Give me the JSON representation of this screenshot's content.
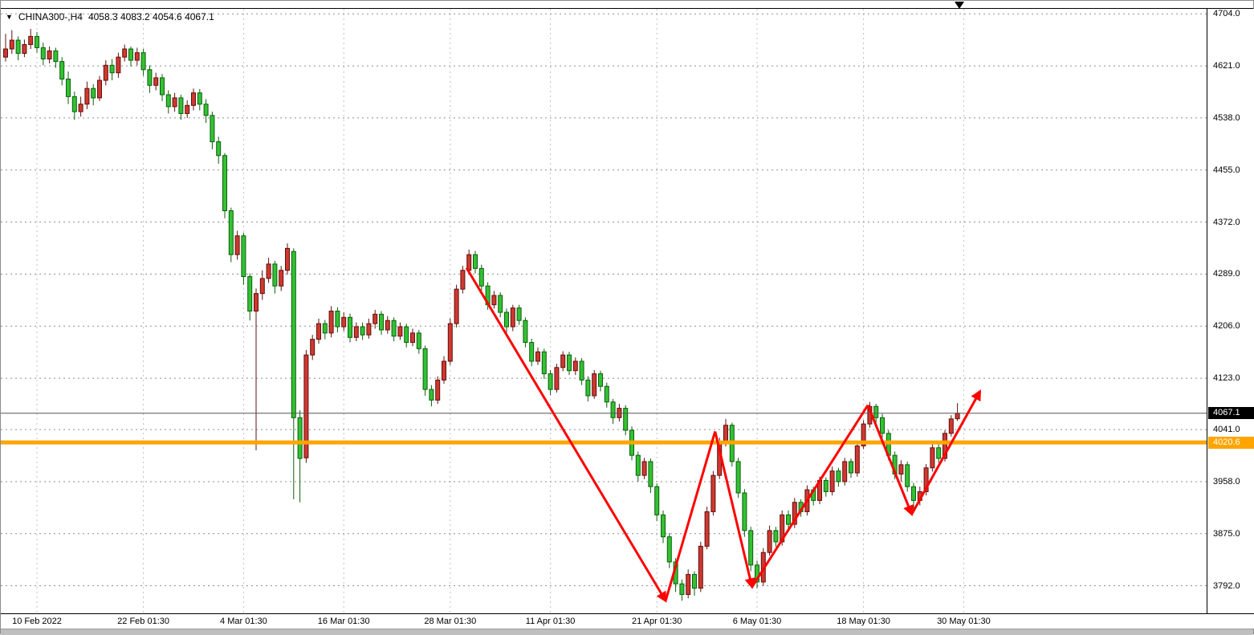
{
  "window": {
    "title_symbol": "CHINA300-,H4",
    "title_ohlc": "4058.3 4083.2 4054.6 4067.1"
  },
  "chart_data": {
    "type": "candlestick",
    "symbol": "CHINA300-",
    "timeframe": "H4",
    "last_ohlc": {
      "open": 4058.3,
      "high": 4083.2,
      "low": 4054.6,
      "close": 4067.1
    },
    "scale": {
      "price_max": 4712,
      "price_min": 3748
    },
    "grid": true,
    "y_axis": {
      "ticks": [
        4704,
        4621,
        4538,
        4455,
        4372,
        4289,
        4206,
        4123,
        4041,
        3958,
        3875,
        3792
      ]
    },
    "x_axis": {
      "labels": [
        {
          "label": "10 Feb 2022",
          "index": 5
        },
        {
          "label": "22 Feb 01:30",
          "index": 22
        },
        {
          "label": "4 Mar 01:30",
          "index": 38
        },
        {
          "label": "16 Mar 01:30",
          "index": 54
        },
        {
          "label": "28 Mar 01:30",
          "index": 71
        },
        {
          "label": "11 Apr 01:30",
          "index": 87
        },
        {
          "label": "21 Apr 01:30",
          "index": 104
        },
        {
          "label": "6 May 01:30",
          "index": 120
        },
        {
          "label": "18 May 01:30",
          "index": 137
        },
        {
          "label": "30 May 01:30",
          "index": 153
        }
      ]
    },
    "price_axis": {
      "current_price_value": 4067.1,
      "current_price_label": "4067.1",
      "hline_value": 4020.6,
      "hline_label": "4020.6"
    },
    "colors": {
      "up_fill": "#cf3830",
      "up_stroke": "#5e100c",
      "down_fill": "#33c133",
      "down_stroke": "#0b5f0b",
      "grid": "#8d8d8d",
      "hline": "#ffa500",
      "current_price_line": "#555555",
      "arrow": "#ff0000",
      "axis_text": "#000000"
    },
    "candles": [
      [
        4635,
        4672,
        4628,
        4648
      ],
      [
        4648,
        4678,
        4640,
        4662
      ],
      [
        4662,
        4668,
        4630,
        4641
      ],
      [
        4641,
        4663,
        4635,
        4655
      ],
      [
        4655,
        4680,
        4648,
        4668
      ],
      [
        4668,
        4675,
        4642,
        4650
      ],
      [
        4650,
        4658,
        4622,
        4632
      ],
      [
        4632,
        4652,
        4625,
        4645
      ],
      [
        4645,
        4650,
        4618,
        4628
      ],
      [
        4628,
        4635,
        4590,
        4600
      ],
      [
        4600,
        4612,
        4560,
        4572
      ],
      [
        4572,
        4580,
        4535,
        4548
      ],
      [
        4548,
        4572,
        4540,
        4560
      ],
      [
        4560,
        4596,
        4552,
        4585
      ],
      [
        4585,
        4592,
        4558,
        4570
      ],
      [
        4570,
        4605,
        4565,
        4598
      ],
      [
        4598,
        4630,
        4590,
        4622
      ],
      [
        4622,
        4632,
        4598,
        4610
      ],
      [
        4610,
        4642,
        4602,
        4635
      ],
      [
        4635,
        4655,
        4628,
        4648
      ],
      [
        4648,
        4652,
        4620,
        4630
      ],
      [
        4630,
        4650,
        4622,
        4642
      ],
      [
        4642,
        4648,
        4605,
        4615
      ],
      [
        4615,
        4622,
        4578,
        4590
      ],
      [
        4590,
        4610,
        4582,
        4602
      ],
      [
        4602,
        4608,
        4565,
        4575
      ],
      [
        4575,
        4582,
        4545,
        4556
      ],
      [
        4556,
        4578,
        4548,
        4570
      ],
      [
        4570,
        4575,
        4535,
        4545
      ],
      [
        4545,
        4566,
        4538,
        4558
      ],
      [
        4558,
        4585,
        4550,
        4578
      ],
      [
        4578,
        4584,
        4550,
        4560
      ],
      [
        4560,
        4568,
        4530,
        4542
      ],
      [
        4542,
        4548,
        4488,
        4500
      ],
      [
        4500,
        4508,
        4465,
        4478
      ],
      [
        4478,
        4482,
        4378,
        4390
      ],
      [
        4390,
        4395,
        4308,
        4320
      ],
      [
        4320,
        4358,
        4312,
        4350
      ],
      [
        4350,
        4355,
        4272,
        4285
      ],
      [
        4285,
        4290,
        4215,
        4230
      ],
      [
        4230,
        4266,
        4008,
        4258
      ],
      [
        4258,
        4295,
        4248,
        4282
      ],
      [
        4282,
        4315,
        4275,
        4305
      ],
      [
        4305,
        4310,
        4258,
        4270
      ],
      [
        4270,
        4302,
        4262,
        4295
      ],
      [
        4295,
        4338,
        4288,
        4330
      ],
      [
        4325,
        4330,
        3930,
        4060
      ],
      [
        4060,
        4072,
        3925,
        3995
      ],
      [
        3996,
        4168,
        3988,
        4160
      ],
      [
        4160,
        4192,
        4152,
        4185
      ],
      [
        4185,
        4218,
        4178,
        4210
      ],
      [
        4210,
        4216,
        4185,
        4195
      ],
      [
        4195,
        4238,
        4188,
        4230
      ],
      [
        4230,
        4236,
        4196,
        4205
      ],
      [
        4205,
        4228,
        4198,
        4220
      ],
      [
        4220,
        4226,
        4180,
        4188
      ],
      [
        4188,
        4212,
        4182,
        4205
      ],
      [
        4205,
        4212,
        4184,
        4192
      ],
      [
        4192,
        4218,
        4186,
        4210
      ],
      [
        4210,
        4232,
        4202,
        4225
      ],
      [
        4225,
        4230,
        4192,
        4200
      ],
      [
        4200,
        4222,
        4194,
        4215
      ],
      [
        4215,
        4220,
        4182,
        4190
      ],
      [
        4190,
        4212,
        4184,
        4205
      ],
      [
        4205,
        4210,
        4172,
        4180
      ],
      [
        4180,
        4202,
        4174,
        4195
      ],
      [
        4195,
        4200,
        4162,
        4170
      ],
      [
        4170,
        4175,
        4095,
        4105
      ],
      [
        4105,
        4112,
        4078,
        4088
      ],
      [
        4088,
        4126,
        4082,
        4120
      ],
      [
        4120,
        4158,
        4114,
        4150
      ],
      [
        4150,
        4218,
        4144,
        4210
      ],
      [
        4210,
        4272,
        4204,
        4265
      ],
      [
        4265,
        4302,
        4258,
        4295
      ],
      [
        4295,
        4328,
        4288,
        4320
      ],
      [
        4320,
        4326,
        4290,
        4298
      ],
      [
        4298,
        4304,
        4262,
        4270
      ],
      [
        4270,
        4276,
        4232,
        4240
      ],
      [
        4240,
        4262,
        4234,
        4255
      ],
      [
        4255,
        4260,
        4220,
        4228
      ],
      [
        4228,
        4234,
        4196,
        4205
      ],
      [
        4205,
        4240,
        4198,
        4235
      ],
      [
        4235,
        4240,
        4208,
        4215
      ],
      [
        4215,
        4220,
        4172,
        4180
      ],
      [
        4180,
        4186,
        4142,
        4150
      ],
      [
        4150,
        4172,
        4144,
        4165
      ],
      [
        4165,
        4170,
        4122,
        4130
      ],
      [
        4130,
        4136,
        4096,
        4105
      ],
      [
        4105,
        4146,
        4100,
        4140
      ],
      [
        4140,
        4166,
        4134,
        4160
      ],
      [
        4160,
        4165,
        4128,
        4135
      ],
      [
        4135,
        4156,
        4128,
        4150
      ],
      [
        4150,
        4155,
        4112,
        4120
      ],
      [
        4120,
        4126,
        4086,
        4095
      ],
      [
        4095,
        4136,
        4090,
        4130
      ],
      [
        4130,
        4135,
        4102,
        4110
      ],
      [
        4110,
        4116,
        4076,
        4085
      ],
      [
        4085,
        4090,
        4050,
        4060
      ],
      [
        4060,
        4082,
        4054,
        4075
      ],
      [
        4075,
        4080,
        4032,
        4040
      ],
      [
        4040,
        4046,
        3992,
        4000
      ],
      [
        4000,
        4006,
        3958,
        3968
      ],
      [
        3968,
        3996,
        3962,
        3990
      ],
      [
        3990,
        3995,
        3940,
        3950
      ],
      [
        3950,
        3955,
        3895,
        3905
      ],
      [
        3905,
        3912,
        3860,
        3870
      ],
      [
        3870,
        3876,
        3820,
        3830
      ],
      [
        3830,
        3836,
        3782,
        3795
      ],
      [
        3795,
        3802,
        3768,
        3778
      ],
      [
        3778,
        3818,
        3772,
        3810
      ],
      [
        3810,
        3815,
        3776,
        3788
      ],
      [
        3788,
        3862,
        3782,
        3855
      ],
      [
        3855,
        3918,
        3850,
        3910
      ],
      [
        3910,
        3975,
        3904,
        3968
      ],
      [
        3968,
        4028,
        3962,
        4020
      ],
      [
        4020,
        4058,
        4014,
        4048
      ],
      [
        4048,
        4052,
        3982,
        3990
      ],
      [
        3990,
        3996,
        3932,
        3940
      ],
      [
        3940,
        3946,
        3870,
        3880
      ],
      [
        3880,
        3886,
        3815,
        3825
      ],
      [
        3825,
        3832,
        3788,
        3798
      ],
      [
        3798,
        3852,
        3792,
        3845
      ],
      [
        3845,
        3888,
        3840,
        3880
      ],
      [
        3880,
        3886,
        3854,
        3862
      ],
      [
        3862,
        3912,
        3856,
        3905
      ],
      [
        3905,
        3912,
        3882,
        3890
      ],
      [
        3890,
        3932,
        3884,
        3925
      ],
      [
        3925,
        3930,
        3902,
        3910
      ],
      [
        3910,
        3952,
        3904,
        3945
      ],
      [
        3945,
        3950,
        3920,
        3928
      ],
      [
        3928,
        3966,
        3922,
        3960
      ],
      [
        3960,
        3965,
        3934,
        3942
      ],
      [
        3942,
        3982,
        3936,
        3975
      ],
      [
        3975,
        3980,
        3950,
        3958
      ],
      [
        3958,
        3996,
        3952,
        3990
      ],
      [
        3990,
        3995,
        3964,
        3972
      ],
      [
        3972,
        4022,
        3966,
        4015
      ],
      [
        4015,
        4056,
        4010,
        4050
      ],
      [
        4050,
        4085,
        4044,
        4078
      ],
      [
        4078,
        4082,
        4052,
        4060
      ],
      [
        4060,
        4066,
        4028,
        4035
      ],
      [
        4035,
        4040,
        3992,
        4000
      ],
      [
        4000,
        4006,
        3962,
        3970
      ],
      [
        3970,
        3992,
        3958,
        3985
      ],
      [
        3985,
        3990,
        3942,
        3950
      ],
      [
        3950,
        3956,
        3915,
        3928
      ],
      [
        3928,
        3950,
        3920,
        3942
      ],
      [
        3942,
        3986,
        3936,
        3980
      ],
      [
        3980,
        4018,
        3974,
        4012
      ],
      [
        4012,
        4018,
        3988,
        3995
      ],
      [
        3995,
        4040,
        3990,
        4035
      ],
      [
        4035,
        4064,
        4030,
        4058
      ],
      [
        4058.3,
        4083.2,
        4054.6,
        4067.1
      ]
    ],
    "annotations": {
      "trend_arrows": {
        "color": "#ff0000",
        "points": [
          {
            "index": 73.6,
            "price": 4299,
            "head": false
          },
          {
            "index": 105.4,
            "price": 3768,
            "head": true
          },
          {
            "index": 113.3,
            "price": 4038,
            "head": false
          },
          {
            "index": 119.2,
            "price": 3790,
            "head": true
          },
          {
            "index": 137.7,
            "price": 4080,
            "head": false
          },
          {
            "index": 144.7,
            "price": 3906,
            "head": true
          },
          {
            "index": 155.6,
            "price": 4102,
            "head": true
          }
        ]
      }
    }
  }
}
